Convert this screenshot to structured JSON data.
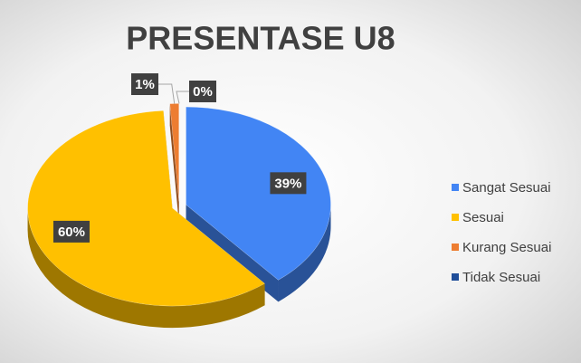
{
  "chart_data": {
    "type": "pie",
    "title": "PRESENTASE U8",
    "categories": [
      "Sangat Sesuai",
      "Sesuai",
      "Kurang Sesuai",
      "Tidak Sesuai"
    ],
    "values": [
      39,
      60,
      1,
      0
    ],
    "value_labels": [
      "39%",
      "60%",
      "1%",
      "0%"
    ],
    "colors": [
      "#4285f4",
      "#ffc000",
      "#ed7d31",
      "#1f4e99"
    ],
    "legend": "right"
  }
}
